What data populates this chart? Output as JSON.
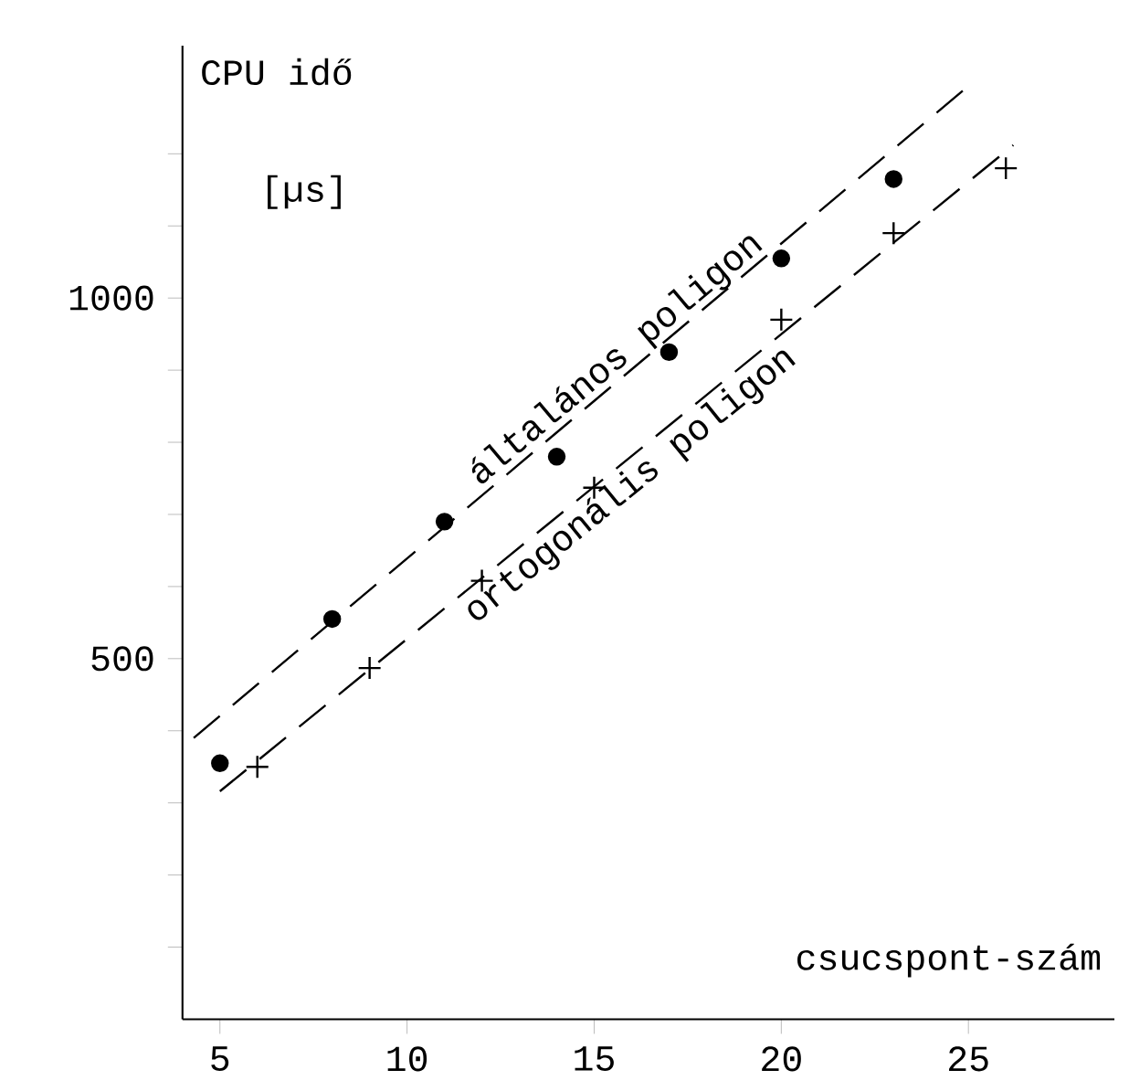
{
  "chart_data": {
    "type": "scatter",
    "xlabel": "csucspont-szám",
    "ylabel": "CPU idő",
    "annotations": [
      "[µs]"
    ],
    "xlim": [
      4,
      28.9
    ],
    "ylim": [
      0,
      1350
    ],
    "xticks": [
      5,
      10,
      15,
      20,
      25
    ],
    "yticks": [
      {
        "value": 100,
        "label": null
      },
      {
        "value": 200,
        "label": null
      },
      {
        "value": 300,
        "label": null
      },
      {
        "value": 400,
        "label": null
      },
      500,
      {
        "value": 600,
        "label": null
      },
      {
        "value": 700,
        "label": null
      },
      {
        "value": 800,
        "label": null
      },
      {
        "value": 900,
        "label": null
      },
      1000,
      {
        "value": 1100,
        "label": null
      },
      {
        "value": 1200,
        "label": null
      }
    ],
    "grid": false,
    "legend": false,
    "series": [
      {
        "type": "scatter",
        "marker": "circle",
        "color": "#000000",
        "x": [
          5,
          8,
          11,
          14,
          17,
          20,
          23
        ],
        "values": [
          355,
          555,
          690,
          780,
          925,
          1055,
          1165
        ]
      },
      {
        "type": "scatter",
        "marker": "cross",
        "color": "#000000",
        "x": [
          6,
          9,
          12,
          15,
          20,
          23,
          26
        ],
        "values": [
          350,
          487,
          608,
          737,
          970,
          1090,
          1180
        ]
      },
      {
        "name": "általános poligon",
        "type": "line",
        "marker": "none",
        "line_style": "dashed",
        "color": "#000000",
        "x": [
          4.3,
          25
        ],
        "values": [
          390,
          1294
        ]
      },
      {
        "name": "ortogonális poligon",
        "type": "line",
        "marker": "none",
        "line_style": "dashed",
        "color": "#000000",
        "x": [
          5,
          26.2
        ],
        "values": [
          316,
          1212
        ]
      }
    ]
  }
}
